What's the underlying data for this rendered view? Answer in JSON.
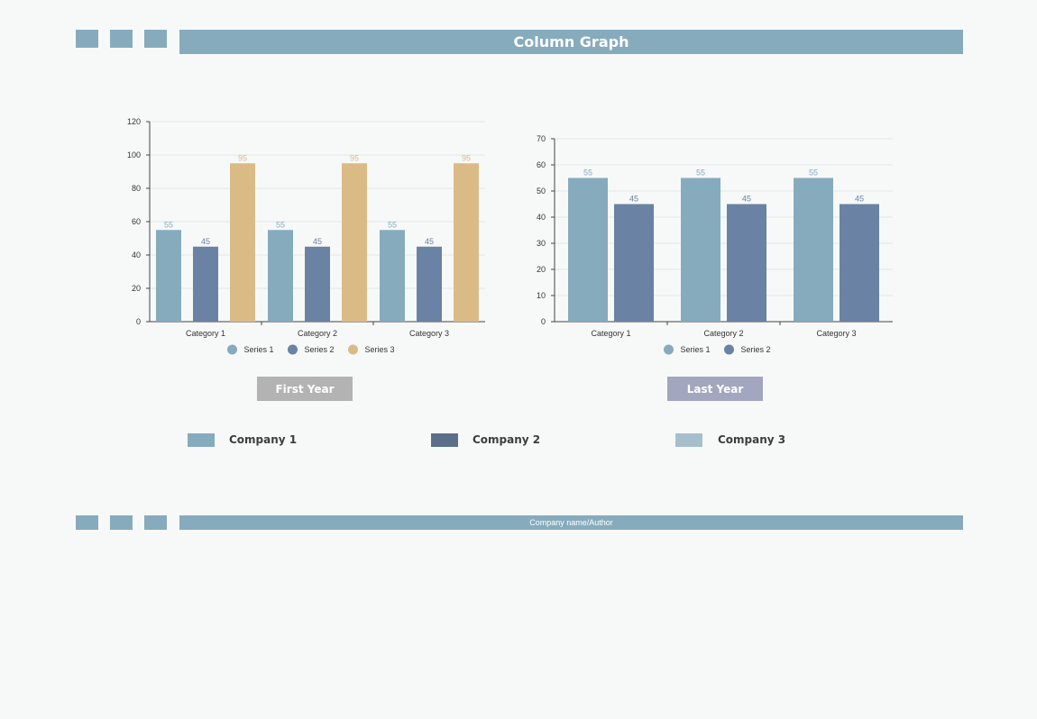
{
  "header": {
    "title": "Column Graph"
  },
  "footer": {
    "text": "Company name/Author"
  },
  "colors": {
    "accent": "#86abbd",
    "series_1": "#86abbd",
    "series_2": "#6a82a3",
    "series_3": "#dbbb85",
    "first_year_box": "#b3b3b3",
    "last_year_box": "#a2a6bf",
    "company_1": "#86abbd",
    "company_2": "#5b6f8b",
    "company_3": "#a6bfcc"
  },
  "panels": {
    "first": {
      "label": "First Year"
    },
    "last": {
      "label": "Last Year"
    }
  },
  "companies": [
    {
      "label": "Company 1"
    },
    {
      "label": "Company 2"
    },
    {
      "label": "Company 3"
    }
  ],
  "chart_data": [
    {
      "type": "bar",
      "categories": [
        "Category 1",
        "Category 2",
        "Category 3"
      ],
      "series": [
        {
          "name": "Series 1",
          "values": [
            55,
            55,
            55
          ]
        },
        {
          "name": "Series 2",
          "values": [
            45,
            45,
            45
          ]
        },
        {
          "name": "Series 3",
          "values": [
            95,
            95,
            95
          ]
        }
      ],
      "ylim": [
        0,
        120
      ],
      "yticks": [
        0,
        20,
        40,
        60,
        80,
        100,
        120
      ],
      "grid": true,
      "legend": "bottom",
      "data_labels": true
    },
    {
      "type": "bar",
      "categories": [
        "Category 1",
        "Category 2",
        "Category 3"
      ],
      "series": [
        {
          "name": "Series 1",
          "values": [
            55,
            55,
            55
          ]
        },
        {
          "name": "Series 2",
          "values": [
            45,
            45,
            45
          ]
        }
      ],
      "ylim": [
        0,
        70
      ],
      "yticks": [
        0,
        10,
        20,
        30,
        40,
        50,
        60,
        70
      ],
      "grid": true,
      "legend": "bottom",
      "data_labels": true
    }
  ]
}
